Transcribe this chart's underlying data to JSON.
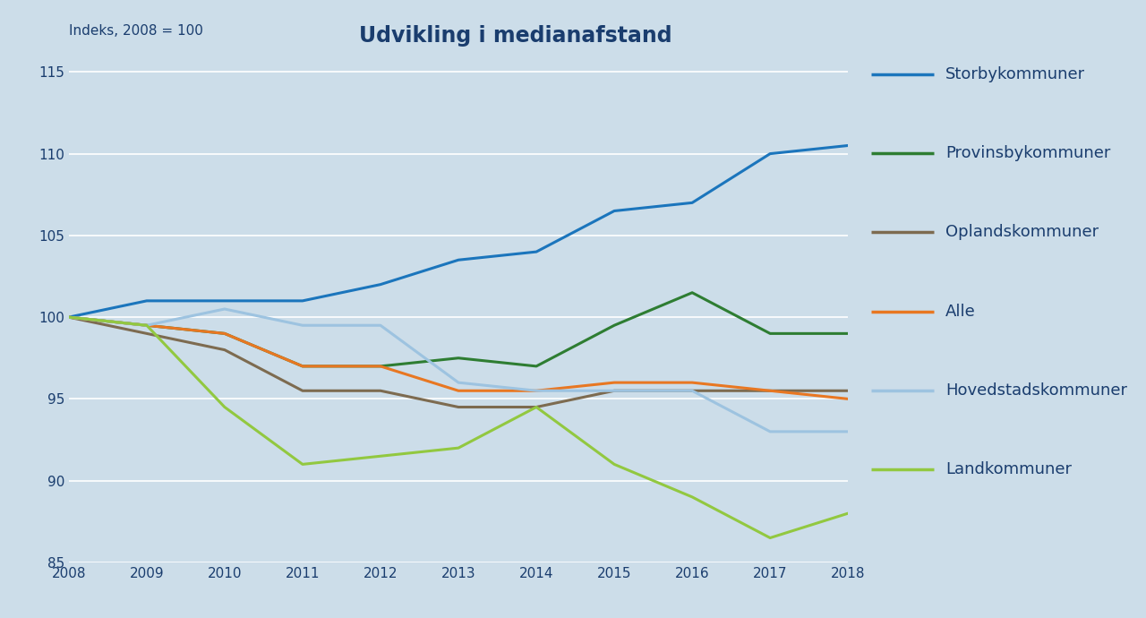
{
  "title": "Udvikling i medianafstand",
  "ylabel": "Indeks, 2008 = 100",
  "years": [
    2008,
    2009,
    2010,
    2011,
    2012,
    2013,
    2014,
    2015,
    2016,
    2017,
    2018
  ],
  "series": {
    "Storbykommuner": {
      "values": [
        100,
        101,
        101,
        101,
        102,
        103.5,
        104,
        106.5,
        107,
        110,
        110.5
      ],
      "color": "#1b75bc",
      "linewidth": 2.2
    },
    "Provinsbykommuner": {
      "values": [
        100,
        99.5,
        99,
        97,
        97,
        97.5,
        97,
        99.5,
        101.5,
        99,
        99
      ],
      "color": "#2e7d32",
      "linewidth": 2.2
    },
    "Oplandskommuner": {
      "values": [
        100,
        99,
        98,
        95.5,
        95.5,
        94.5,
        94.5,
        95.5,
        95.5,
        95.5,
        95.5
      ],
      "color": "#7d6b50",
      "linewidth": 2.2
    },
    "Alle": {
      "values": [
        100,
        99.5,
        99,
        97,
        97,
        95.5,
        95.5,
        96,
        96,
        95.5,
        95
      ],
      "color": "#e87722",
      "linewidth": 2.2
    },
    "Hovedstadskommuner": {
      "values": [
        100,
        99.5,
        100.5,
        99.5,
        99.5,
        96,
        95.5,
        95.5,
        95.5,
        93,
        93
      ],
      "color": "#9dc3e0",
      "linewidth": 2.2
    },
    "Landkommuner": {
      "values": [
        100,
        99.5,
        94.5,
        91,
        91.5,
        92,
        94.5,
        91,
        89,
        86.5,
        88
      ],
      "color": "#92c840",
      "linewidth": 2.2
    }
  },
  "ylim": [
    85,
    116
  ],
  "yticks": [
    85,
    90,
    95,
    100,
    105,
    110,
    115
  ],
  "background_color": "#ccdde9",
  "grid_color": "#ffffff",
  "legend_order": [
    "Storbykommuner",
    "Provinsbykommuner",
    "Oplandskommuner",
    "Alle",
    "Hovedstadskommuner",
    "Landkommuner"
  ],
  "title_fontsize": 17,
  "label_fontsize": 11,
  "tick_fontsize": 11,
  "legend_fontsize": 13,
  "text_color": "#1a3d6e"
}
